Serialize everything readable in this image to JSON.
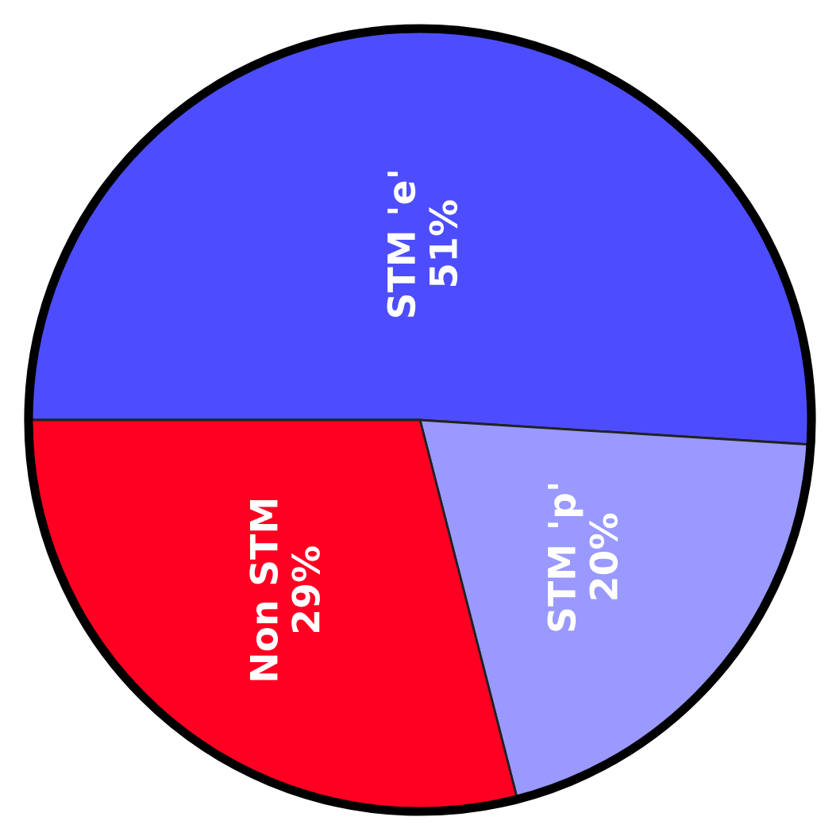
{
  "chart_data": {
    "type": "pie",
    "categories": [
      "STM 'e'",
      "STM 'p'",
      "Non STM"
    ],
    "values": [
      51,
      20,
      29
    ],
    "colors": [
      "#4d4dff",
      "#9999ff",
      "#ff0022"
    ],
    "value_labels": [
      "51%",
      "20%",
      "29%"
    ]
  }
}
